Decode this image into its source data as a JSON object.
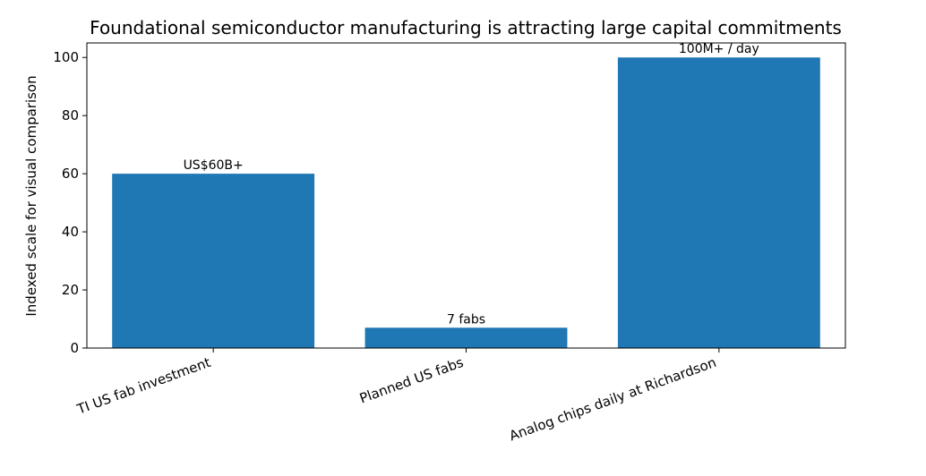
{
  "chart_data": {
    "type": "bar",
    "title": "Foundational semiconductor manufacturing is attracting large capital commitments",
    "xlabel": "",
    "ylabel": "Indexed scale for visual comparison",
    "categories": [
      "TI US fab investment",
      "Planned US fabs",
      "Analog chips daily at Richardson"
    ],
    "values": [
      60,
      7,
      100
    ],
    "bar_labels": [
      "US$60B+",
      "7 fabs",
      "100M+ / day"
    ],
    "ylim": [
      0,
      105
    ],
    "yticks": [
      0,
      20,
      40,
      60,
      80,
      100
    ],
    "grid": false,
    "bar_color": "#1f77b4"
  }
}
